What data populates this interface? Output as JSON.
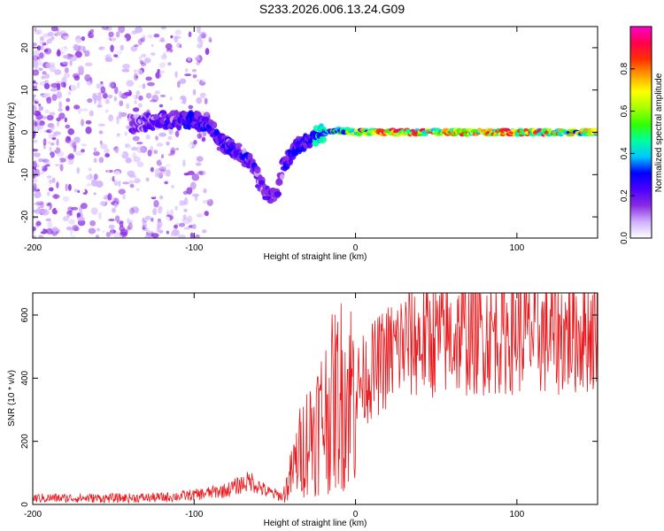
{
  "title": "S233.2026.006.13.24.G09",
  "chart_data": [
    {
      "type": "heatmap",
      "title": "S233.2026.006.13.24.G09",
      "xlabel": "Height of straight line (km)",
      "ylabel": "Frequency (Hz)",
      "xlim": [
        -200,
        150
      ],
      "ylim": [
        -25,
        25
      ],
      "xticks": [
        -200,
        -100,
        0,
        100
      ],
      "yticks": [
        -20,
        -10,
        0,
        10,
        20
      ],
      "colorbar": {
        "label": "Normalized spectral amplitude",
        "range": [
          0,
          1
        ],
        "ticks": [
          "0.0",
          "0.2",
          "0.4",
          "0.6",
          "0.8"
        ],
        "colors": [
          "#ffffff",
          "#d0b0ff",
          "#8a2be2",
          "#4b00ff",
          "#0000ff",
          "#00c8ff",
          "#00ff9c",
          "#33ff00",
          "#aaff00",
          "#ffff00",
          "#ffa000",
          "#ff3000",
          "#ff0050",
          "#ff00cc"
        ]
      },
      "ridge": [
        {
          "x": -140,
          "y": 2,
          "amp": 0.2
        },
        {
          "x": -120,
          "y": 3,
          "amp": 0.25
        },
        {
          "x": -105,
          "y": 3,
          "amp": 0.3
        },
        {
          "x": -90,
          "y": 2,
          "amp": 0.3
        },
        {
          "x": -85,
          "y": -2,
          "amp": 0.3
        },
        {
          "x": -75,
          "y": -4,
          "amp": 0.3
        },
        {
          "x": -65,
          "y": -7,
          "amp": 0.3
        },
        {
          "x": -58,
          "y": -13,
          "amp": 0.25
        },
        {
          "x": -50,
          "y": -16,
          "amp": 0.2
        },
        {
          "x": -45,
          "y": -8,
          "amp": 0.3
        },
        {
          "x": -38,
          "y": -4,
          "amp": 0.3
        },
        {
          "x": -30,
          "y": -2,
          "amp": 0.35
        },
        {
          "x": -20,
          "y": 0,
          "amp": 0.45
        },
        {
          "x": -10,
          "y": 0.5,
          "amp": 0.5
        },
        {
          "x": 0,
          "y": 0,
          "amp": 0.65
        },
        {
          "x": 25,
          "y": 0,
          "amp": 0.9
        },
        {
          "x": 50,
          "y": 0,
          "amp": 0.8
        },
        {
          "x": 80,
          "y": 0,
          "amp": 0.8
        },
        {
          "x": 100,
          "y": 0,
          "amp": 0.85
        },
        {
          "x": 130,
          "y": 0,
          "amp": 0.75
        },
        {
          "x": 150,
          "y": 0,
          "amp": 0.7
        }
      ]
    },
    {
      "type": "line",
      "xlabel": "Height of straight line (km)",
      "ylabel": "SNR (10 * v/v)",
      "xlim": [
        -200,
        150
      ],
      "ylim": [
        0,
        670
      ],
      "xticks": [
        -200,
        -100,
        0,
        100
      ],
      "yticks": [
        0,
        200,
        400,
        600
      ],
      "color": "#e8181c",
      "series": [
        {
          "name": "SNR",
          "x": [
            -200,
            -150,
            -120,
            -100,
            -80,
            -65,
            -55,
            -45,
            -40,
            -35,
            -30,
            -20,
            -10,
            0,
            10,
            20,
            30,
            40,
            50,
            60,
            80,
            100,
            120,
            150
          ],
          "values": [
            20,
            20,
            22,
            30,
            45,
            75,
            40,
            25,
            90,
            160,
            210,
            280,
            350,
            370,
            420,
            470,
            510,
            520,
            525,
            530,
            540,
            545,
            535,
            550
          ]
        }
      ]
    }
  ]
}
